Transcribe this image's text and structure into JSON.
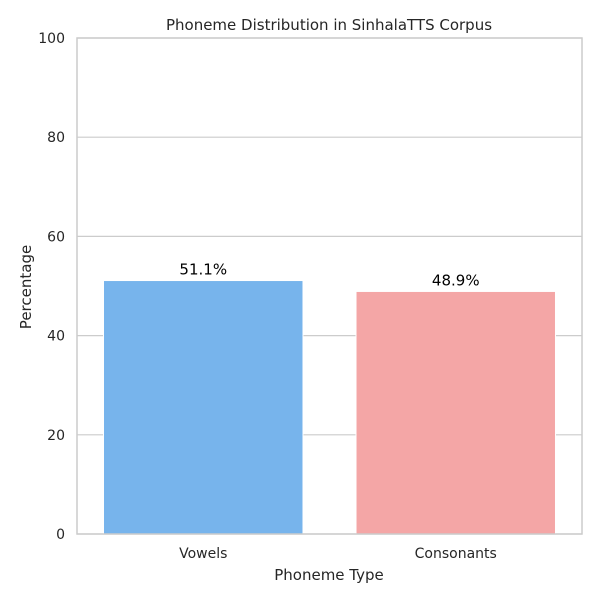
{
  "chart_data": {
    "type": "bar",
    "title": "Phoneme Distribution in SinhalaTTS Corpus",
    "xlabel": "Phoneme Type",
    "ylabel": "Percentage",
    "categories": [
      "Vowels",
      "Consonants"
    ],
    "values": [
      51.1,
      48.9
    ],
    "data_labels": [
      "51.1%",
      "48.9%"
    ],
    "ylim": [
      0,
      100
    ],
    "yticks": [
      0,
      20,
      40,
      60,
      80,
      100
    ],
    "ytick_labels": [
      "0",
      "20",
      "40",
      "60",
      "80",
      "100"
    ],
    "grid": "horizontal",
    "colors": {
      "bars": [
        "#77b4ec",
        "#f4a6a6"
      ],
      "grid": "#cccccc",
      "frame": "#cccccc",
      "background": "#ffffff"
    }
  }
}
